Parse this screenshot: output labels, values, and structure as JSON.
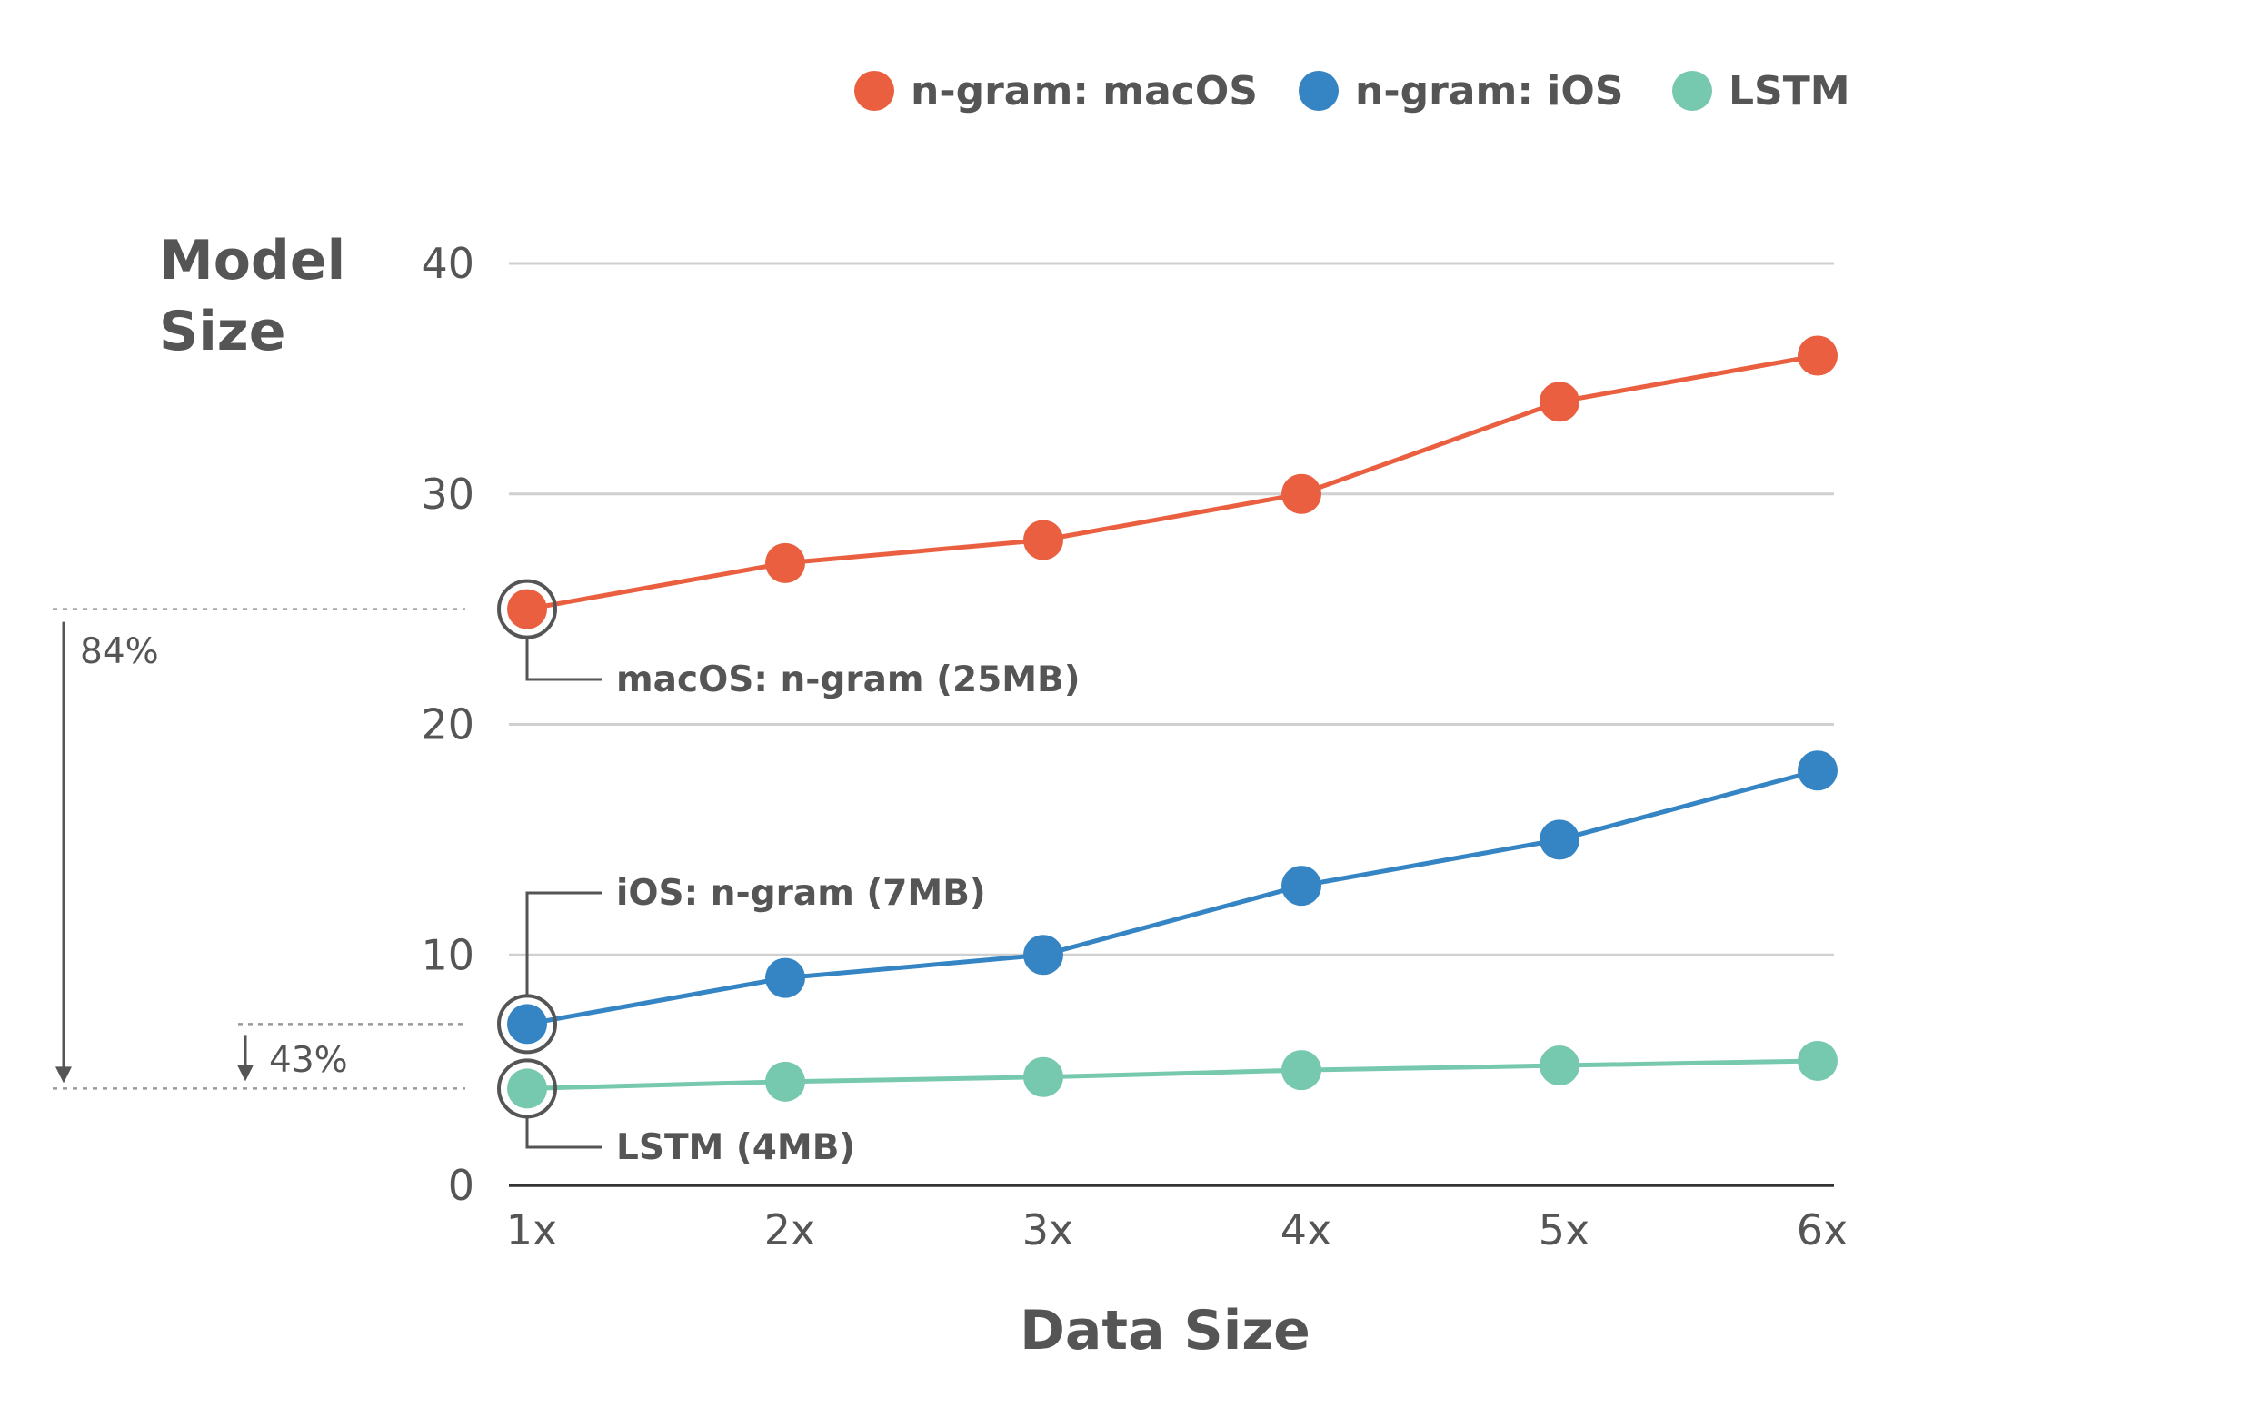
{
  "chart_data": {
    "type": "line",
    "title": "",
    "xlabel": "Data Size",
    "ylabel_lines": [
      "Model",
      "Size"
    ],
    "categories": [
      "1x",
      "2x",
      "3x",
      "4x",
      "5x",
      "6x"
    ],
    "y_ticks": [
      "0",
      "10",
      "20",
      "30",
      "40"
    ],
    "ylim": [
      0,
      40
    ],
    "grid": true,
    "legend_position": "top-right",
    "series": [
      {
        "name": "n-gram: macOS",
        "color": "#e95f40",
        "values": [
          25,
          27,
          28,
          30,
          34,
          36
        ]
      },
      {
        "name": "n-gram: iOS",
        "color": "#3584c3",
        "values": [
          7,
          9,
          10,
          13,
          15,
          18
        ]
      },
      {
        "name": "LSTM",
        "color": "#76c8ae",
        "values": [
          4.2,
          4.5,
          4.7,
          5.0,
          5.2,
          5.4
        ]
      }
    ],
    "annotations": {
      "macos": "macOS: n-gram (25MB)",
      "ios": "iOS: n-gram (7MB)",
      "lstm": "LSTM (4MB)",
      "pct_macos": "84%",
      "pct_ios": "43%"
    }
  }
}
